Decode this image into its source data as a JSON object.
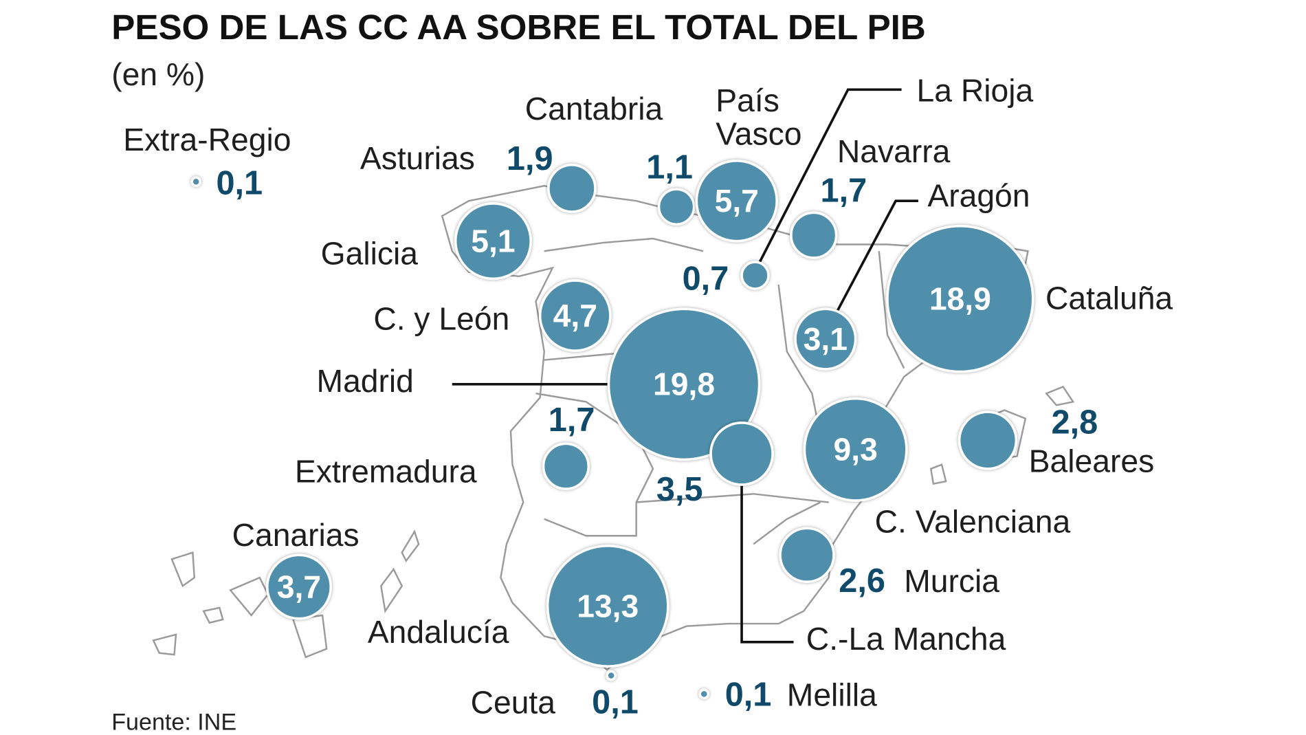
{
  "title": "PESO DE LAS CC AA SOBRE EL TOTAL DEL PIB",
  "subtitle": "(en %)",
  "source": "Fuente: INE",
  "colors": {
    "bubble": "#4f8fab",
    "value_text": "#0f4a6a",
    "map_outline": "#9a9a9a"
  },
  "chart_data": {
    "type": "bubble-map",
    "unit": "%",
    "regions": [
      {
        "name": "Extra-Regio",
        "value": "0,1"
      },
      {
        "name": "Asturias",
        "value": "1,9"
      },
      {
        "name": "Cantabria",
        "value": "1,1"
      },
      {
        "name": "País Vasco",
        "name_lines": [
          "País",
          "Vasco"
        ],
        "value": "5,7"
      },
      {
        "name": "La Rioja",
        "value": "0,7"
      },
      {
        "name": "Navarra",
        "value": "1,7"
      },
      {
        "name": "Aragón",
        "value": "3,1"
      },
      {
        "name": "Galicia",
        "value": "5,1"
      },
      {
        "name": "Cataluña",
        "value": "18,9"
      },
      {
        "name": "C. y León",
        "value": "4,7"
      },
      {
        "name": "Madrid",
        "value": "19,8"
      },
      {
        "name": "Extremadura",
        "value": "1,7"
      },
      {
        "name": "C.-La Mancha",
        "value": "3,5"
      },
      {
        "name": "C. Valenciana",
        "value": "9,3"
      },
      {
        "name": "Baleares",
        "value": "2,8"
      },
      {
        "name": "Murcia",
        "value": "2,6"
      },
      {
        "name": "Canarias",
        "value": "3,7"
      },
      {
        "name": "Andalucía",
        "value": "13,3"
      },
      {
        "name": "Ceuta",
        "value": "0,1"
      },
      {
        "name": "Melilla",
        "value": "0,1"
      }
    ]
  }
}
